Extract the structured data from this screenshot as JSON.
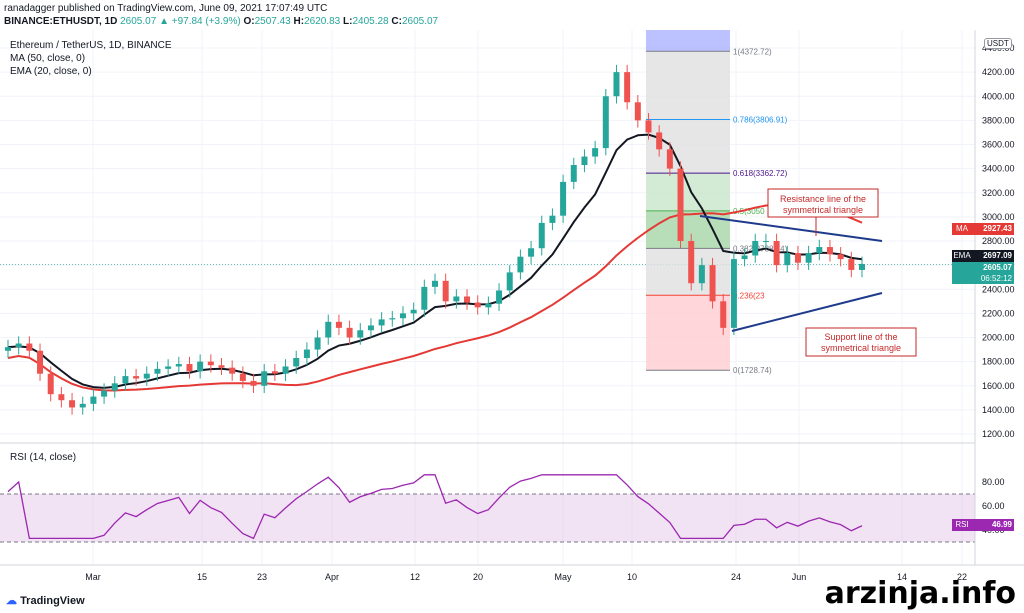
{
  "header": {
    "published": "ranadagger published on TradingView.com, June 09, 2021 17:07:49 UTC",
    "symbol": "BINANCE:ETHUSDT, 1D",
    "last": "2605.07",
    "change": "▲ +97.84 (+3.9%)",
    "o_label": "O:",
    "o": "2507.43",
    "h_label": "H:",
    "h": "2620.83",
    "l_label": "L:",
    "l": "2405.28",
    "c_label": "C:",
    "c": "2605.07"
  },
  "legend": {
    "title": "Ethereum / TetherUS, 1D, BINANCE",
    "ma": "MA (50, close, 0)",
    "ema": "EMA (20, close, 0)",
    "rsi": "RSI (14, close)"
  },
  "price_axis": {
    "currency": "USDT",
    "ticks": [
      "1200.00",
      "1400.00",
      "1600.00",
      "1800.00",
      "2000.00",
      "2200.00",
      "2400.00",
      "2600.00",
      "2800.00",
      "3000.00",
      "3200.00",
      "3400.00",
      "3600.00",
      "3800.00",
      "4000.00",
      "4200.00",
      "4400.00"
    ]
  },
  "rsi_axis": {
    "ticks": [
      "40.00",
      "60.00",
      "80.00"
    ]
  },
  "time_axis": {
    "ticks": [
      "Mar",
      "15",
      "23",
      "Apr",
      "12",
      "20",
      "May",
      "10",
      "24",
      "Jun",
      "14",
      "22"
    ]
  },
  "tags": {
    "ma": {
      "label": "MA",
      "value": "2927.43",
      "color": "#e53935"
    },
    "ema": {
      "label": "EMA",
      "value": "2697.09",
      "color": "#131722"
    },
    "price": {
      "value": "2605.07",
      "countdown": "06:52:12",
      "color": "#26a69a"
    },
    "rsi": {
      "label": "RSI",
      "value": "46.99",
      "color": "#9c27b0"
    }
  },
  "fib": {
    "levels": [
      "1(4372.72)",
      "0.786(3806.91)",
      "0.618(3362.72)",
      "0.5(3050",
      "0.382(2738.74)",
      "0.236(23",
      "0(1728.74)"
    ]
  },
  "annotations": {
    "resistance": "Resistance line of the\nsymmetrical triangle",
    "support": "Support line of the\nsymmetrical triangle"
  },
  "footer": {
    "brand": "TradingView"
  },
  "watermark": "arzinja.info",
  "chart_data": {
    "type": "line",
    "title": "Ethereum / TetherUS, 1D, BINANCE",
    "xlabel": "",
    "ylabel": "",
    "ylim": [
      1200,
      4400
    ],
    "grid": true,
    "candles_close_approx": [
      1920,
      1950,
      1890,
      1700,
      1530,
      1480,
      1420,
      1450,
      1510,
      1560,
      1620,
      1680,
      1660,
      1700,
      1740,
      1760,
      1780,
      1720,
      1800,
      1770,
      1750,
      1700,
      1640,
      1600,
      1720,
      1700,
      1760,
      1830,
      1900,
      2000,
      2130,
      2080,
      2000,
      2060,
      2100,
      2150,
      2160,
      2200,
      2230,
      2420,
      2470,
      2300,
      2340,
      2290,
      2250,
      2280,
      2390,
      2540,
      2670,
      2740,
      2950,
      3010,
      3290,
      3430,
      3500,
      3570,
      4000,
      4200,
      3950,
      3800,
      3700,
      3560,
      3400,
      2800,
      2450,
      2600,
      2300,
      2080,
      2650,
      2680,
      2800,
      2800,
      2600,
      2700,
      2620,
      2700,
      2750,
      2690,
      2650,
      2560,
      2610
    ],
    "series": [
      {
        "name": "MA (50, close, 0)",
        "last": 2927.43
      },
      {
        "name": "EMA (20, close, 0)",
        "last": 2697.09
      },
      {
        "name": "RSI (14, close)",
        "last": 46.99
      }
    ]
  }
}
